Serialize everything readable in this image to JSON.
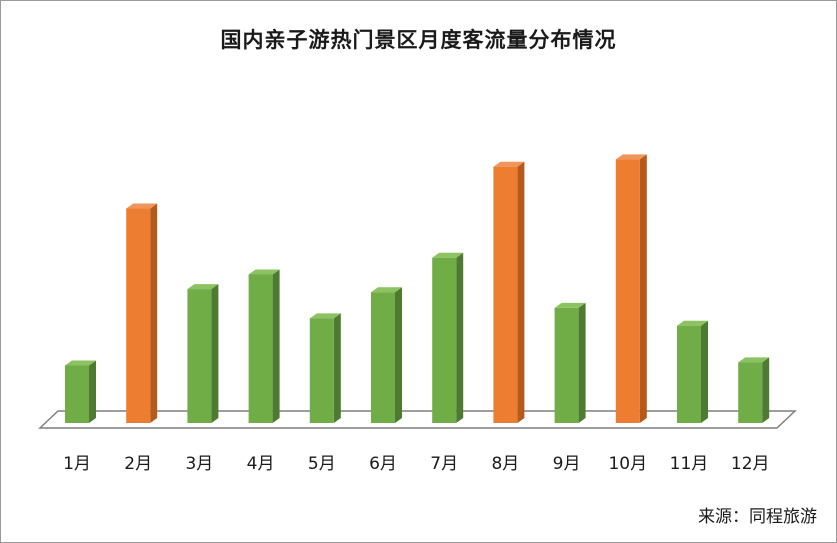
{
  "chart_data": {
    "type": "bar",
    "title": "国内亲子游热门景区月度客流量分布情况",
    "categories": [
      "1月",
      "2月",
      "3月",
      "4月",
      "5月",
      "6月",
      "7月",
      "8月",
      "9月",
      "10月",
      "11月",
      "12月"
    ],
    "values": [
      55,
      205,
      128,
      142,
      100,
      125,
      158,
      245,
      110,
      252,
      93,
      58
    ],
    "highlighted": [
      false,
      true,
      false,
      false,
      false,
      false,
      false,
      true,
      false,
      true,
      false,
      false
    ],
    "ylim": [
      0,
      260
    ],
    "xlabel": "",
    "ylabel": "",
    "grid": false,
    "legend": "none",
    "style": "3d-column"
  },
  "colors": {
    "normal_front": "#70ad47",
    "normal_side": "#4e7a31",
    "normal_top": "#8cc261",
    "highlight_front": "#ed7d31",
    "highlight_side": "#b55a1d",
    "highlight_top": "#f2955a",
    "floor": "#7f7f7f"
  },
  "source": "来源：同程旅游"
}
